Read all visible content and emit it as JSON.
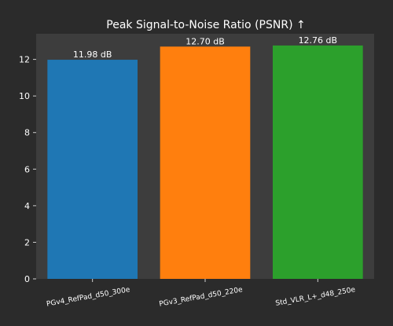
{
  "chart_data": {
    "type": "bar",
    "title": "Peak Signal-to-Noise Ratio (PSNR) ↑",
    "xlabel": "",
    "ylabel": "",
    "categories": [
      "PGv4_RefPad_d50_300e",
      "PGv3_RefPad_d50_220e",
      "Std_VLR_L+_d48_250e"
    ],
    "values": [
      11.98,
      12.7,
      12.76
    ],
    "value_labels": [
      "11.98 dB",
      "12.70 dB",
      "12.76 dB"
    ],
    "bar_colors": [
      "#1f77b4",
      "#ff7f0e",
      "#2ca02c"
    ],
    "ylim": [
      0,
      13.4
    ],
    "yticks": [
      0,
      2,
      4,
      6,
      8,
      10,
      12
    ],
    "grid": false,
    "legend": "none"
  },
  "colors": {
    "page_background": "#2b2b2b",
    "plot_background": "#3d3d3d",
    "text": "#ffffff",
    "axis": "#cfcfcf"
  }
}
